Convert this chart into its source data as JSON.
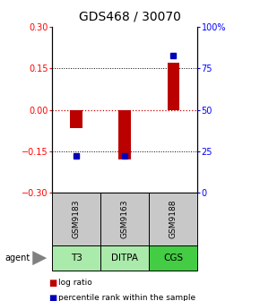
{
  "title": "GDS468 / 30070",
  "samples": [
    "GSM9183",
    "GSM9163",
    "GSM9188"
  ],
  "agents": [
    "T3",
    "DITPA",
    "CGS"
  ],
  "log_ratios": [
    -0.065,
    -0.18,
    0.17
  ],
  "percentile_ranks": [
    22,
    22,
    83
  ],
  "ylim_left": [
    -0.3,
    0.3
  ],
  "ylim_right": [
    0,
    100
  ],
  "yticks_left": [
    -0.3,
    -0.15,
    0,
    0.15,
    0.3
  ],
  "yticks_right": [
    0,
    25,
    50,
    75,
    100
  ],
  "ytick_labels_right": [
    "0",
    "25",
    "50",
    "75",
    "100%"
  ],
  "bar_color": "#bb0000",
  "square_color": "#0000bb",
  "zero_line_color": "#cc0000",
  "dotted_line_color": "#000000",
  "sample_box_color": "#c8c8c8",
  "agent_box_color_light": "#aaeaaa",
  "agent_box_color_dark": "#44cc44",
  "background_color": "#ffffff",
  "title_fontsize": 10,
  "tick_fontsize": 7,
  "bar_width": 0.25,
  "legend_items": [
    "log ratio",
    "percentile rank within the sample"
  ],
  "agent_colors": [
    "#aaeaaa",
    "#aaeaaa",
    "#44cc44"
  ]
}
